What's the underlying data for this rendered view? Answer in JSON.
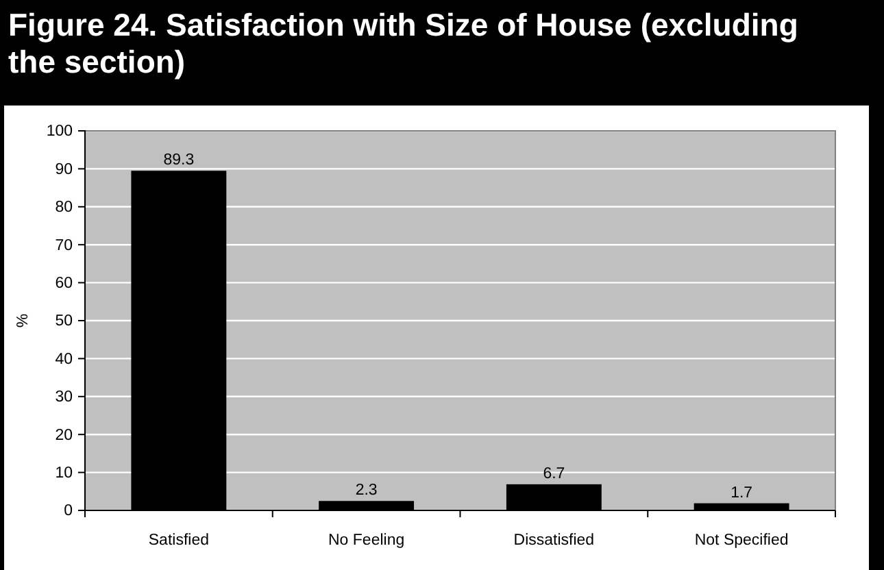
{
  "chart_data": {
    "type": "bar",
    "title": "Figure 24. Satisfaction with Size of House (excluding the section)",
    "ylabel": "%",
    "categories": [
      "Satisfied",
      "No Feeling",
      "Dissatisfied",
      "Not Specified"
    ],
    "values": [
      89.3,
      2.3,
      6.7,
      1.7
    ],
    "color": "#000000",
    "ylim": [
      0,
      100
    ],
    "yticks": [
      0,
      10,
      20,
      30,
      40,
      50,
      60,
      70,
      80,
      90,
      100
    ],
    "grid": "y",
    "data_labels": true
  }
}
